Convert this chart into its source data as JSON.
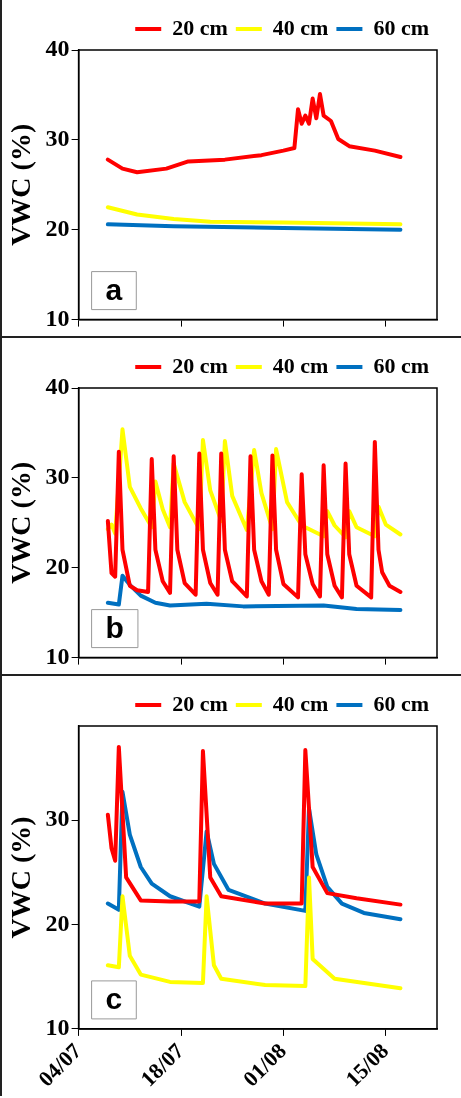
{
  "chart_data": [
    {
      "type": "line",
      "ylabel": "VWC (%)",
      "xlim": [
        "--07-04",
        "--08-22"
      ],
      "xticks": [
        {
          "value": "--07-04",
          "label": null
        },
        {
          "value": "--07-18",
          "label": null
        },
        {
          "value": "--08-01",
          "label": null
        },
        {
          "value": "--08-15",
          "label": null
        }
      ],
      "ylim": [
        10,
        40
      ],
      "yticks": [
        10,
        20,
        30,
        40
      ],
      "tick_labels": "y",
      "legend": "top right",
      "marker": "none",
      "line_style": "solid",
      "grid": false,
      "annotations": [
        "a"
      ],
      "series": [
        {
          "name": "20 cm",
          "color": "#ff0000",
          "x": [
            "--07-08",
            "--07-10",
            "--07-12",
            "--07-16",
            "--07-19",
            "--07-24",
            "--07-29",
            "--08-01",
            "--08-02T12:00",
            "--08-03",
            "--08-03T12:00",
            "--08-04",
            "--08-04T12:00",
            "--08-05",
            "--08-05T12:00",
            "--08-06",
            "--08-06T12:00",
            "--08-07T12:00",
            "--08-08T12:00",
            "--08-10",
            "--08-13T12:00",
            "--08-17"
          ],
          "values": [
            27.8,
            26.8,
            26.4,
            26.8,
            27.6,
            27.8,
            28.3,
            28.8,
            29.1,
            33.4,
            31.8,
            32.7,
            31.8,
            34.6,
            32.4,
            35.1,
            32.7,
            32.1,
            30.1,
            29.3,
            28.8,
            28.1
          ]
        },
        {
          "name": "40 cm",
          "color": "#ffff00",
          "x": [
            "--07-08",
            "--07-12",
            "--07-17",
            "--07-22",
            "--08-01",
            "--08-17"
          ],
          "values": [
            22.5,
            21.7,
            21.2,
            20.9,
            20.8,
            20.6
          ]
        },
        {
          "name": "60 cm",
          "color": "#0070c0",
          "x": [
            "--07-08",
            "--07-17",
            "--08-01",
            "--08-17"
          ],
          "values": [
            20.6,
            20.4,
            20.2,
            20.0
          ]
        }
      ]
    },
    {
      "type": "line",
      "ylabel": "VWC (%)",
      "xlim": [
        "--07-04",
        "--08-22"
      ],
      "xticks": [
        {
          "value": "--07-04",
          "label": null
        },
        {
          "value": "--07-18",
          "label": null
        },
        {
          "value": "--08-01",
          "label": null
        },
        {
          "value": "--08-15",
          "label": null
        }
      ],
      "ylim": [
        10,
        40
      ],
      "yticks": [
        10,
        20,
        30,
        40
      ],
      "tick_labels": "y",
      "legend": "top right",
      "marker": "none",
      "line_style": "solid",
      "grid": false,
      "annotations": [
        "b"
      ],
      "series": [
        {
          "name": "20 cm",
          "color": "#ff0000",
          "x": [
            "--07-08",
            "--07-08T12:00",
            "--07-09",
            "--07-09T12:00",
            "--07-10",
            "--07-11",
            "--07-12",
            "--07-13T12:00",
            "--07-14",
            "--07-14T12:00",
            "--07-15T12:00",
            "--07-16T12:00",
            "--07-17",
            "--07-17T12:00",
            "--07-18T12:00",
            "--07-20",
            "--07-20T12:00",
            "--07-21",
            "--07-22",
            "--07-23",
            "--07-23T12:00",
            "--07-24",
            "--07-25",
            "--07-27",
            "--07-27T12:00",
            "--07-28",
            "--07-29",
            "--07-30",
            "--07-30T12:00",
            "--07-31",
            "--08-01",
            "--08-03",
            "--08-03T12:00",
            "--08-04",
            "--08-05",
            "--08-06",
            "--08-06T12:00",
            "--08-07",
            "--08-08",
            "--08-09",
            "--08-09T12:00",
            "--08-10",
            "--08-11",
            "--08-13",
            "--08-13T12:00",
            "--08-14",
            "--08-14T12:00",
            "--08-15T12:00",
            "--08-17"
          ],
          "values": [
            25.2,
            19.4,
            19.0,
            32.9,
            22,
            18,
            17.5,
            17.3,
            32.1,
            22,
            18.5,
            17.2,
            32.4,
            22,
            18.3,
            17.0,
            32.7,
            22,
            18.3,
            17.0,
            32.7,
            22,
            18.5,
            16.8,
            32.4,
            22,
            18.5,
            17.0,
            32.5,
            22,
            18.2,
            16.7,
            30.4,
            21.5,
            18.2,
            16.8,
            31.4,
            21.5,
            18,
            16.7,
            31.6,
            21.5,
            18,
            16.7,
            34.0,
            22,
            19.5,
            18,
            17.3
          ]
        },
        {
          "name": "40 cm",
          "color": "#ffff00",
          "x": [
            "--07-08",
            "--07-08T12:00",
            "--07-09",
            "--07-10",
            "--07-11",
            "--07-12T12:00",
            "--07-14",
            "--07-14T12:00",
            "--07-15T12:00",
            "--07-16T12:00",
            "--07-17",
            "--07-18T12:00",
            "--07-20T12:00",
            "--07-21",
            "--07-22",
            "--07-23T12:00",
            "--07-24",
            "--07-25",
            "--07-27",
            "--07-28",
            "--07-29",
            "--07-30T12:00",
            "--07-31",
            "--08-01T12:00",
            "--08-03T12:00",
            "--08-06T12:00",
            "--08-07",
            "--08-08",
            "--08-09T12:00",
            "--08-10",
            "--08-11",
            "--08-13T12:00",
            "--08-14",
            "--08-15",
            "--08-17"
          ],
          "values": [
            24.3,
            24.8,
            23.8,
            35.4,
            29,
            26.6,
            24.5,
            29.6,
            26.5,
            24.5,
            31.6,
            27.3,
            24.3,
            34.2,
            28.6,
            25.2,
            34.1,
            28,
            24.2,
            33.1,
            28.3,
            24.3,
            33.2,
            27.3,
            24.7,
            23.5,
            26.3,
            24.7,
            23.4,
            26.3,
            24.5,
            23.5,
            26.8,
            24.8,
            23.7
          ]
        },
        {
          "name": "60 cm",
          "color": "#0070c0",
          "x": [
            "--07-08",
            "--07-09T12:00",
            "--07-10",
            "--07-11",
            "--07-12T12:00",
            "--07-14T12:00",
            "--07-16T12:00",
            "--07-21T12:00",
            "--07-26T12:00",
            "--08-06T12:00",
            "--08-11",
            "--08-17"
          ],
          "values": [
            16.1,
            15.9,
            19.1,
            18.1,
            16.9,
            16.1,
            15.8,
            16.0,
            15.7,
            15.8,
            15.4,
            15.3
          ]
        }
      ]
    },
    {
      "type": "line",
      "ylabel": "VWC (%)",
      "xlim": [
        "--07-04",
        "--08-22"
      ],
      "xticks": [
        {
          "value": "--07-04",
          "label": "04/07"
        },
        {
          "value": "--07-18",
          "label": "18/07"
        },
        {
          "value": "--08-01",
          "label": "01/08"
        },
        {
          "value": "--08-15",
          "label": "15/08"
        }
      ],
      "ylim": [
        10,
        39
      ],
      "yticks": [
        10,
        20,
        30
      ],
      "legend": "top right",
      "marker": "none",
      "line_style": "solid",
      "grid": false,
      "annotations": [
        "c"
      ],
      "series": [
        {
          "name": "20 cm",
          "color": "#ff0000",
          "x": [
            "--07-08",
            "--07-08T12:00",
            "--07-09",
            "--07-09T12:00",
            "--07-10T12:00",
            "--07-12T12:00",
            "--07-16T12:00",
            "--07-20T12:00",
            "--07-21",
            "--07-22",
            "--07-23T12:00",
            "--07-29T12:00",
            "--08-03T12:00",
            "--08-04",
            "--08-05",
            "--08-07",
            "--08-11",
            "--08-17"
          ],
          "values": [
            30.5,
            27.3,
            26.1,
            37.0,
            24.5,
            22.3,
            22.2,
            22.2,
            36.6,
            24.5,
            22.7,
            22.0,
            22.0,
            36.7,
            25.5,
            23.0,
            22.5,
            21.9
          ]
        },
        {
          "name": "40 cm",
          "color": "#ffff00",
          "x": [
            "--07-08",
            "--07-09T12:00",
            "--07-10",
            "--07-11",
            "--07-12T12:00",
            "--07-16T12:00",
            "--07-21",
            "--07-21T12:00",
            "--07-22T12:00",
            "--07-23T12:00",
            "--07-29T12:00",
            "--08-04",
            "--08-04T12:00",
            "--08-05",
            "--08-08",
            "--08-17"
          ],
          "values": [
            16.1,
            15.9,
            22.7,
            17.0,
            15.2,
            14.5,
            14.4,
            22.7,
            16.1,
            14.8,
            14.2,
            14.1,
            24.5,
            16.7,
            14.8,
            13.9
          ]
        },
        {
          "name": "60 cm",
          "color": "#0070c0",
          "x": [
            "--07-08",
            "--07-09T12:00",
            "--07-10",
            "--07-11",
            "--07-12T12:00",
            "--07-14",
            "--07-16T12:00",
            "--07-20T12:00",
            "--07-21T12:00",
            "--07-22T12:00",
            "--07-24T12:00",
            "--07-29T12:00",
            "--08-04",
            "--08-04T12:00",
            "--08-05T12:00",
            "--08-07",
            "--08-09",
            "--08-12",
            "--08-17"
          ],
          "values": [
            22.0,
            21.4,
            32.7,
            28.6,
            25.5,
            23.9,
            22.7,
            21.7,
            28.9,
            25.8,
            23.3,
            22.0,
            21.3,
            31.1,
            26.7,
            23.6,
            22.0,
            21.1,
            20.5
          ]
        }
      ]
    }
  ]
}
